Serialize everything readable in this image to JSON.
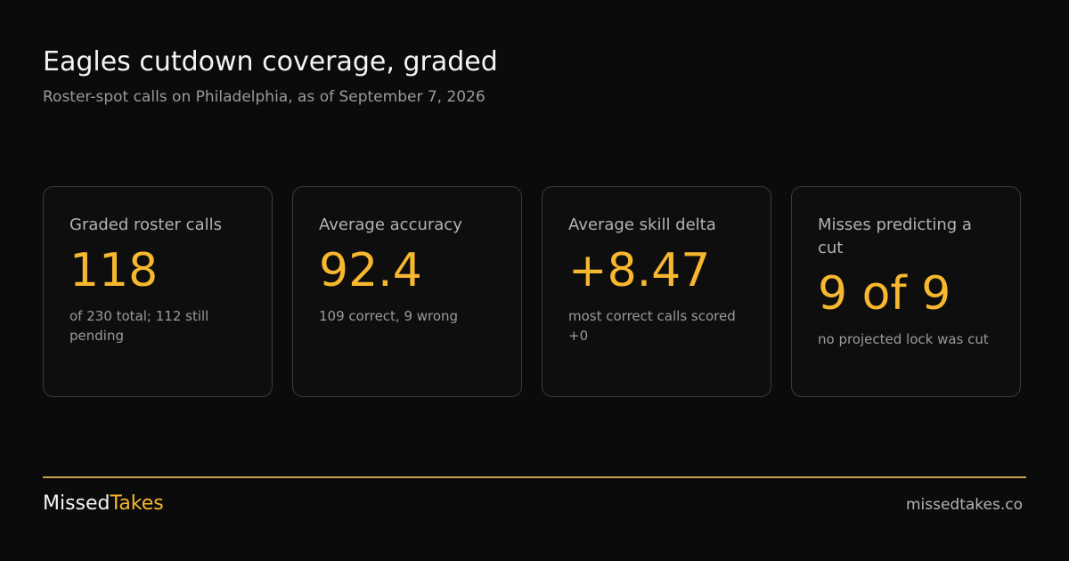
{
  "header": {
    "title": "Eagles cutdown coverage, graded",
    "subtitle": "Roster-spot calls on Philadelphia, as of September 7, 2026"
  },
  "cards": [
    {
      "label": "Graded roster calls",
      "value": "118",
      "note": "of 230 total; 112 still pending"
    },
    {
      "label": "Average accuracy",
      "value": "92.4",
      "note": "109 correct, 9 wrong"
    },
    {
      "label": "Average skill delta",
      "value": "+8.47",
      "note": "most correct calls scored +0"
    },
    {
      "label": "Misses predicting a cut",
      "value": "9 of 9",
      "note": "no projected lock was cut"
    }
  ],
  "footer": {
    "brand_first": "Missed",
    "brand_second": "Takes",
    "url": "missedtakes.co"
  }
}
